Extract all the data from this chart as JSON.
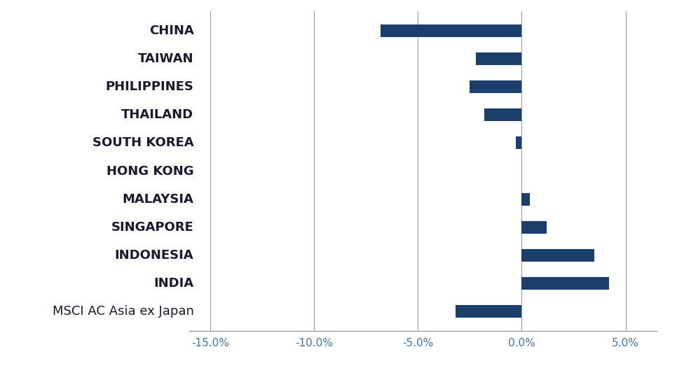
{
  "categories": [
    "CHINA",
    "TAIWAN",
    "PHILIPPINES",
    "THAILAND",
    "SOUTH KOREA",
    "HONG KONG",
    "MALAYSIA",
    "SINGAPORE",
    "INDONESIA",
    "INDIA",
    "MSCI AC Asia ex Japan"
  ],
  "values": [
    -6.8,
    -2.2,
    -2.5,
    -1.8,
    -0.3,
    0.0,
    0.4,
    1.2,
    3.5,
    4.2,
    -3.2
  ],
  "bar_color": "#1b3f6b",
  "background_color": "#ffffff",
  "xlim": [
    -16,
    6.5
  ],
  "xticks": [
    -15,
    -10,
    -5,
    0,
    5
  ],
  "xtick_labels": [
    "-15.0%",
    "-10.0%",
    "-5.0%",
    "0.0%",
    "5.0%"
  ],
  "bar_height": 0.45,
  "grid_color": "#999999",
  "label_color": "#1a1a2e",
  "label_fontsize": 13,
  "xtick_fontsize": 11,
  "xtick_color": "#4472a8"
}
